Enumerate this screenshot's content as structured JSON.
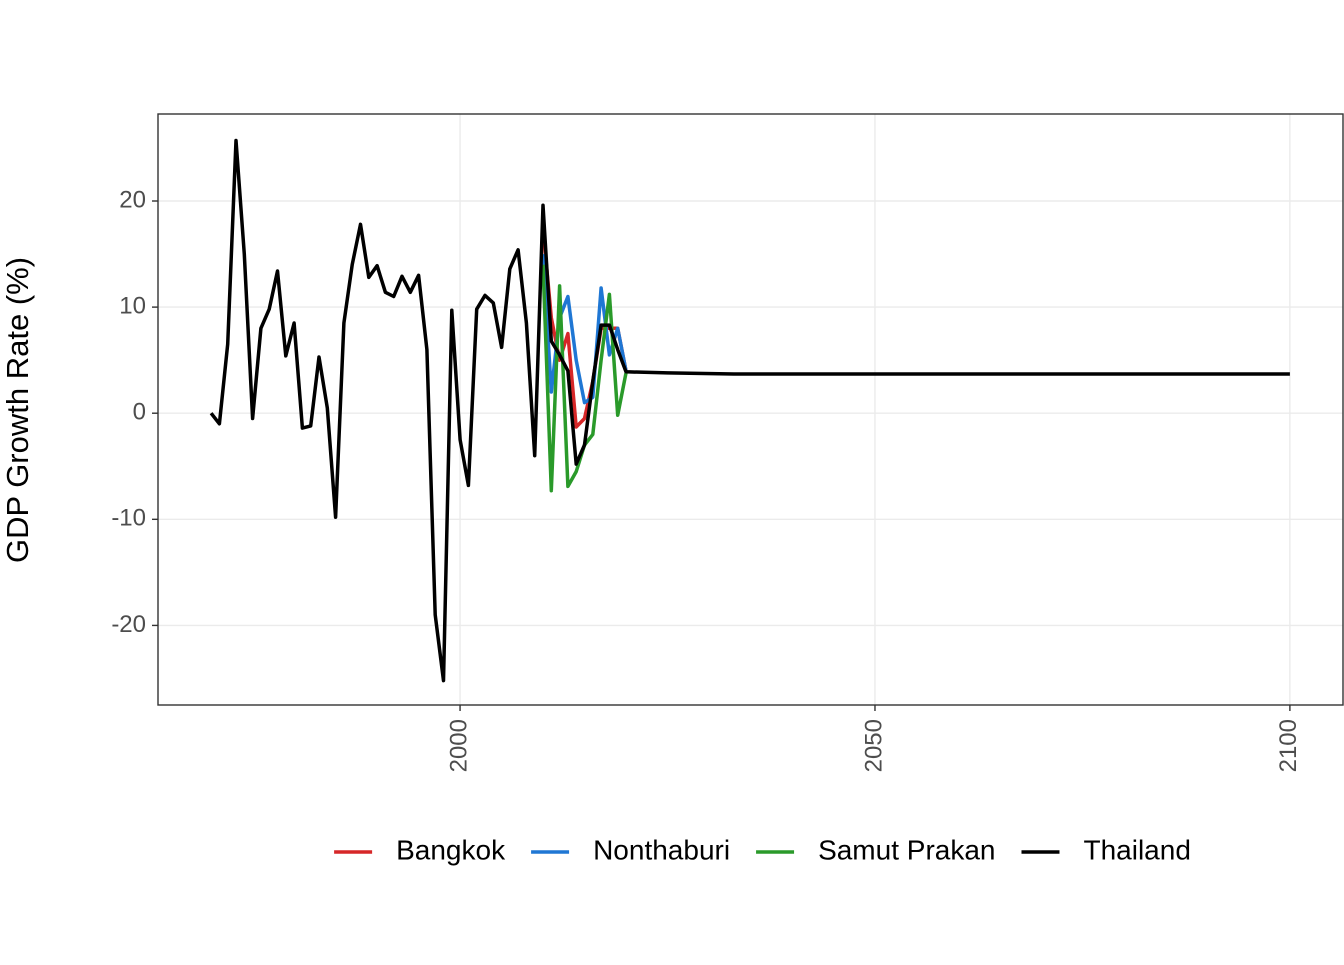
{
  "chart_data": {
    "type": "line",
    "y_label": "GDP Growth Rate (%)",
    "x": [
      1970,
      1971,
      1972,
      1973,
      1974,
      1975,
      1976,
      1977,
      1978,
      1979,
      1980,
      1981,
      1982,
      1983,
      1984,
      1985,
      1986,
      1987,
      1988,
      1989,
      1990,
      1991,
      1992,
      1993,
      1994,
      1995,
      1996,
      1997,
      1998,
      1999,
      2000,
      2001,
      2002,
      2003,
      2004,
      2005,
      2006,
      2007,
      2008,
      2009,
      2010,
      2011,
      2012,
      2013,
      2014,
      2015,
      2016,
      2017,
      2018,
      2019,
      2020,
      2025,
      2033,
      2100
    ],
    "series": [
      {
        "name": "Bangkok",
        "color": "#d62728",
        "values": [
          null,
          null,
          null,
          null,
          null,
          null,
          null,
          null,
          null,
          null,
          null,
          null,
          null,
          null,
          null,
          null,
          null,
          null,
          null,
          null,
          null,
          null,
          null,
          null,
          null,
          null,
          null,
          null,
          null,
          null,
          null,
          null,
          null,
          null,
          null,
          null,
          null,
          null,
          null,
          null,
          17.5,
          9,
          5,
          7.5,
          -1.3,
          -0.5,
          3,
          8,
          8,
          8,
          4,
          null,
          null,
          null
        ]
      },
      {
        "name": "Nonthaburi",
        "color": "#1f77d4",
        "values": [
          null,
          null,
          null,
          null,
          null,
          null,
          null,
          null,
          null,
          null,
          null,
          null,
          null,
          null,
          null,
          null,
          null,
          null,
          null,
          null,
          null,
          null,
          null,
          null,
          null,
          null,
          null,
          null,
          null,
          null,
          null,
          null,
          null,
          null,
          null,
          null,
          null,
          null,
          null,
          null,
          15,
          2,
          9,
          11,
          5,
          1,
          1.5,
          11.8,
          5.5,
          8,
          4,
          null,
          null,
          null
        ]
      },
      {
        "name": "Samut Prakan",
        "color": "#2a9a2a",
        "values": [
          null,
          null,
          null,
          null,
          null,
          null,
          null,
          null,
          null,
          null,
          null,
          null,
          null,
          null,
          null,
          null,
          null,
          null,
          null,
          null,
          null,
          null,
          null,
          null,
          null,
          null,
          null,
          null,
          null,
          null,
          null,
          null,
          null,
          null,
          null,
          null,
          null,
          null,
          null,
          null,
          14,
          -7.3,
          12,
          -6.9,
          -5.5,
          -3,
          -2,
          5,
          11.2,
          -0.2,
          3.8,
          null,
          null,
          null
        ]
      },
      {
        "name": "Thailand",
        "color": "#000000",
        "values": [
          0,
          -1,
          6.5,
          25.7,
          15,
          -0.5,
          8,
          9.8,
          13.4,
          5.4,
          8.5,
          -1.4,
          -1.2,
          5.3,
          0.5,
          -9.8,
          8.5,
          14,
          17.8,
          12.8,
          13.9,
          11.4,
          11,
          12.9,
          11.4,
          13,
          6,
          -19,
          -25.2,
          9.7,
          -2.5,
          -6.8,
          9.8,
          11.1,
          10.4,
          6.2,
          13.6,
          15.4,
          8.5,
          -4,
          19.6,
          6.8,
          5.5,
          4,
          -4.8,
          -3,
          3,
          8.3,
          8.3,
          6,
          3.9,
          3.8,
          3.7,
          3.7
        ]
      }
    ],
    "xlim": [
      1963.6,
      2106.4
    ],
    "xticks": [
      2000,
      2050,
      2100
    ],
    "ylim": [
      -27.5,
      28.2
    ],
    "yticks": [
      -20,
      -10,
      0,
      10,
      20
    ],
    "grid": true,
    "legend": "bottom"
  }
}
